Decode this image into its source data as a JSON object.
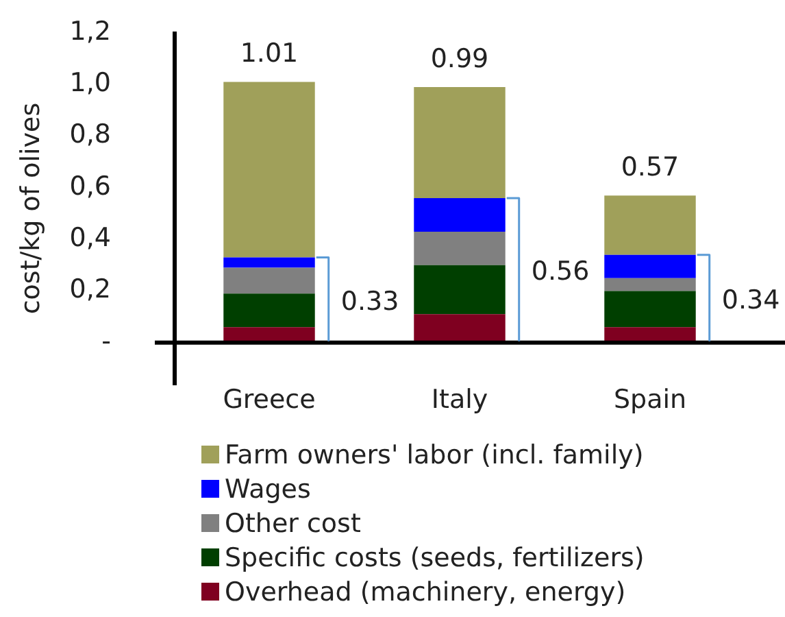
{
  "chart_data": {
    "type": "bar",
    "ylabel": "cost/kg of olives",
    "categories": [
      "Greece",
      "Italy",
      "Spain"
    ],
    "series": [
      {
        "name": "Overhead (machinery, energy)",
        "color": "#7f0020",
        "values": [
          0.06,
          0.11,
          0.06
        ]
      },
      {
        "name": "Specific costs (seeds, fertilizers)",
        "color": "#003f00",
        "values": [
          0.13,
          0.19,
          0.14
        ]
      },
      {
        "name": "Other cost",
        "color": "#808080",
        "values": [
          0.1,
          0.13,
          0.05
        ]
      },
      {
        "name": "Wages",
        "color": "#0000ff",
        "values": [
          0.04,
          0.13,
          0.09
        ]
      },
      {
        "name": "Farm owners' labor (incl. family)",
        "color": "#a0a05a",
        "values": [
          0.68,
          0.43,
          0.23
        ]
      }
    ],
    "stacked": true,
    "ylim": [
      -0.16,
      1.2
    ],
    "yticks": [
      {
        "value": 0,
        "label": "-"
      },
      {
        "value": 0.2,
        "label": "0,2"
      },
      {
        "value": 0.4,
        "label": "0,4"
      },
      {
        "value": 0.6,
        "label": "0,6"
      },
      {
        "value": 0.8,
        "label": "0,8"
      },
      {
        "value": 1.0,
        "label": "1,0"
      },
      {
        "value": 1.2,
        "label": "1,2"
      }
    ],
    "totals": [
      "1.01",
      "0.99",
      "0.57"
    ],
    "annotations": [
      "0.33",
      "0.56",
      "0.34"
    ],
    "legend": "bottom"
  }
}
